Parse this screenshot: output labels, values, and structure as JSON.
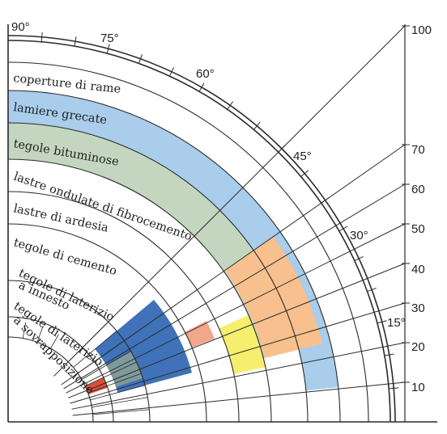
{
  "angle_labels": [
    "90°",
    "75°",
    "60°",
    "45°",
    "30°",
    "15°"
  ],
  "percent_labels": [
    "100",
    "70",
    "60",
    "50",
    "40",
    "30",
    "20",
    "10"
  ],
  "bands": [
    {
      "label": "coperture di rame",
      "color": "#ffffff"
    },
    {
      "label": "lamiere grecate",
      "color": "#a9cdeb"
    },
    {
      "label": "tegole bituminose",
      "color": "#c4d6c0"
    },
    {
      "label": "lastre ondulate di fibrocemento",
      "color": "#ffffff"
    },
    {
      "label": "lastre di ardesia",
      "color": "#ffffff"
    },
    {
      "label": "tegole di cemento",
      "color": "#ffffff"
    },
    {
      "label": "tegole di laterizio a innesto",
      "color": "#ffffff"
    },
    {
      "label": "tegole di laterizio a sovrapposizione",
      "color": "#ffffff"
    }
  ],
  "band_label_lines": {
    "rame": "coperture di rame",
    "grecate": "lamiere grecate",
    "bituminose": "tegole bituminose",
    "fibrocemento": "lastre ondulate di fibrocemento",
    "ardesia": "lastre di ardesia",
    "cemento": "tegole di cemento",
    "innesto_1": "tegole di laterizio",
    "innesto_2": "a innesto",
    "sovrapp_1": "tegole di laterizio",
    "sovrapp_2": "a sovrapposizione"
  },
  "colors": {
    "grecate": "#a9cdeb",
    "bituminose": "#c4d6c0",
    "fibrocemento": "#f7c08e",
    "ardesia": "#f6ef6e",
    "cemento": "#f0a78a",
    "innesto": "#3f72b8",
    "sovrapposizione": "#d9503a",
    "grecate_dark": "#8fbbe0",
    "bituminose_dark": "#b3c9ad",
    "line": "#2a2a2a"
  }
}
